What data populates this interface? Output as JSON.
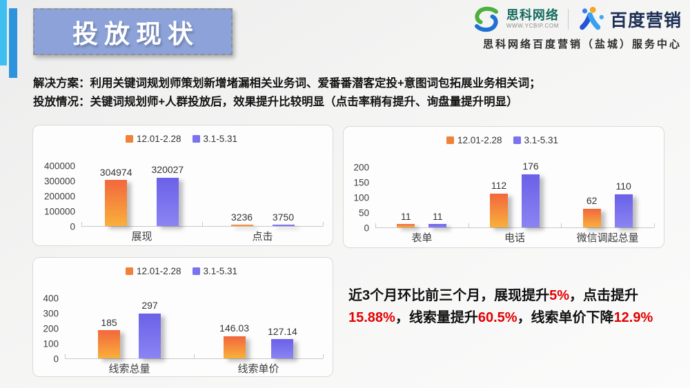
{
  "slide": {
    "title": "投放现状",
    "org_line": "思科网络百度营销（盐城）服务中心"
  },
  "logos": {
    "sike_name": "思科网络",
    "sike_url": "WWW.YCBIP.COM",
    "baidu_name": "百度营销"
  },
  "intro": {
    "lines": [
      {
        "segments": [
          {
            "text": "解决方案："
          },
          {
            "text": "利用关键词规划师策划新增堵漏相关业务词、爱番番潜客定投+意图词包拓展业务相关词；"
          }
        ]
      },
      {
        "segments": [
          {
            "text": "投放情况："
          },
          {
            "text": "关键词规划师+人群投放后，效果提升比较明显（点击率稍有提升、"
          },
          {
            "text": "询盘量提升明显",
            "bold": true
          },
          {
            "text": "）"
          }
        ]
      }
    ]
  },
  "colors": {
    "series": [
      "#f08138",
      "#7a72ee"
    ],
    "bar_gradients": [
      [
        "#f2673d",
        "#f9b03b"
      ],
      [
        "#6a61e8",
        "#8b84f2"
      ]
    ],
    "highlight": "#e40000",
    "title_bg": "#8ca2d8"
  },
  "chart_data": [
    {
      "type": "bar",
      "categories": [
        "展现",
        "点击"
      ],
      "series": [
        {
          "name": "12.01-2.28",
          "values": [
            304974,
            3236
          ]
        },
        {
          "name": "3.1-5.31",
          "values": [
            320027,
            3750
          ]
        }
      ],
      "ylim": [
        0,
        400000
      ],
      "yticks": [
        400000,
        300000,
        200000,
        100000,
        0
      ],
      "legend_position": "top",
      "grid": false
    },
    {
      "type": "bar",
      "categories": [
        "表单",
        "电话",
        "微信调起总量"
      ],
      "series": [
        {
          "name": "12.01-2.28",
          "values": [
            11,
            112,
            62
          ]
        },
        {
          "name": "3.1-5.31",
          "values": [
            11,
            176,
            110
          ]
        }
      ],
      "ylim": [
        0,
        200
      ],
      "yticks": [
        200,
        150,
        100,
        50,
        0
      ],
      "legend_position": "top",
      "grid": false
    },
    {
      "type": "bar",
      "categories": [
        "线索总量",
        "线索单价"
      ],
      "series": [
        {
          "name": "12.01-2.28",
          "values": [
            185,
            146.03
          ]
        },
        {
          "name": "3.1-5.31",
          "values": [
            297,
            127.14
          ]
        }
      ],
      "ylim": [
        0,
        400
      ],
      "yticks": [
        400,
        300,
        200,
        100,
        0
      ],
      "legend_position": "top",
      "grid": false
    }
  ],
  "summary": {
    "segments": [
      {
        "text": "近3个月环比前三个月，展现提升"
      },
      {
        "text": "5%",
        "highlight": true
      },
      {
        "text": "，点击提升"
      },
      {
        "text": "15.88%",
        "highlight": true
      },
      {
        "text": "，线索量提升"
      },
      {
        "text": "60.5%",
        "highlight": true
      },
      {
        "text": "，线索单价下降"
      },
      {
        "text": "12.9%",
        "highlight": true
      }
    ]
  }
}
